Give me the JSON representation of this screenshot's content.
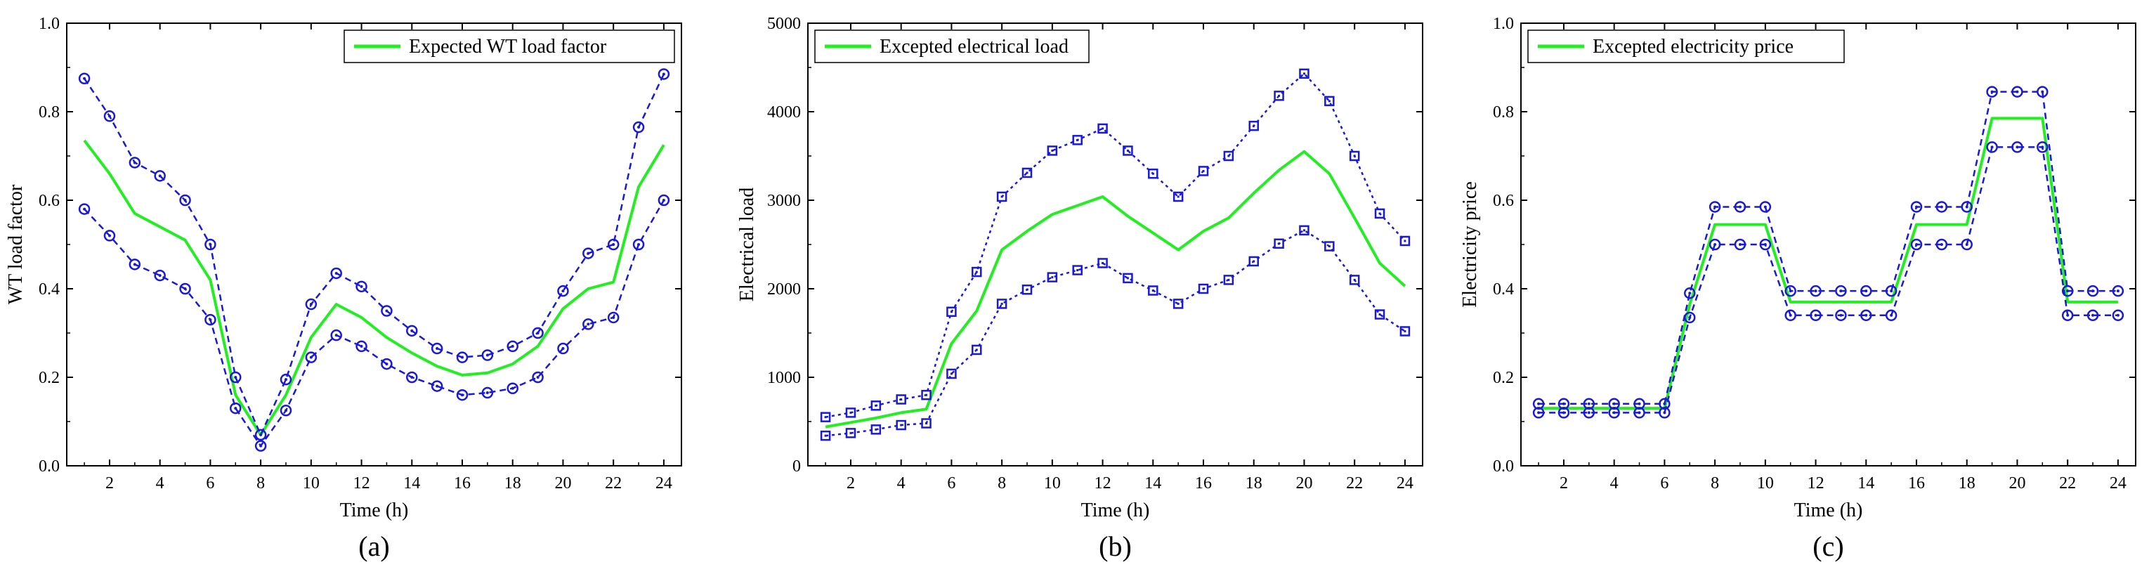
{
  "colors": {
    "expected": "#22ee22",
    "bound": "#1a1ad6",
    "axis": "#000000",
    "background": "#ffffff"
  },
  "chart_data": [
    {
      "type": "line",
      "panel_label": "(a)",
      "xlabel": "Time (h)",
      "ylabel": "WT load factor",
      "xlim": [
        0.3,
        24.7
      ],
      "ylim": [
        0.0,
        1.0
      ],
      "xticks": [
        2,
        4,
        6,
        8,
        10,
        12,
        14,
        16,
        18,
        20,
        22,
        24
      ],
      "yticks": [
        0.0,
        0.2,
        0.4,
        0.6,
        0.8,
        1.0
      ],
      "ytick_labels": [
        "0.0",
        "0.2",
        "0.4",
        "0.6",
        "0.8",
        "1.0"
      ],
      "legend": {
        "label": "Expected WT load factor",
        "position": "top-right"
      },
      "marker": "circle",
      "x": [
        1,
        2,
        3,
        4,
        5,
        6,
        7,
        8,
        9,
        10,
        11,
        12,
        13,
        14,
        15,
        16,
        17,
        18,
        19,
        20,
        21,
        22,
        23,
        24
      ],
      "series": [
        {
          "name": "Expected WT load factor",
          "role": "expected",
          "values": [
            0.735,
            0.66,
            0.57,
            0.54,
            0.51,
            0.42,
            0.16,
            0.07,
            0.16,
            0.29,
            0.365,
            0.335,
            0.29,
            0.255,
            0.225,
            0.205,
            0.21,
            0.23,
            0.27,
            0.355,
            0.4,
            0.415,
            0.63,
            0.725
          ]
        },
        {
          "name": "Upper bound",
          "role": "upper",
          "values": [
            0.875,
            0.79,
            0.685,
            0.655,
            0.6,
            0.5,
            0.2,
            0.07,
            0.195,
            0.365,
            0.435,
            0.405,
            0.35,
            0.305,
            0.265,
            0.245,
            0.25,
            0.27,
            0.3,
            0.395,
            0.48,
            0.5,
            0.765,
            0.885
          ]
        },
        {
          "name": "Lower bound",
          "role": "lower",
          "values": [
            0.58,
            0.52,
            0.455,
            0.43,
            0.4,
            0.33,
            0.13,
            0.045,
            0.125,
            0.245,
            0.295,
            0.27,
            0.23,
            0.2,
            0.18,
            0.16,
            0.165,
            0.175,
            0.2,
            0.265,
            0.32,
            0.335,
            0.5,
            0.6
          ]
        }
      ]
    },
    {
      "type": "line",
      "panel_label": "(b)",
      "xlabel": "Time (h)",
      "ylabel": "Electrical load",
      "xlim": [
        0.3,
        24.7
      ],
      "ylim": [
        0,
        5000
      ],
      "xticks": [
        2,
        4,
        6,
        8,
        10,
        12,
        14,
        16,
        18,
        20,
        22,
        24
      ],
      "yticks": [
        0,
        1000,
        2000,
        3000,
        4000,
        5000
      ],
      "ytick_labels": [
        "0",
        "1000",
        "2000",
        "3000",
        "4000",
        "5000"
      ],
      "legend": {
        "label": "Excepted electrical load",
        "position": "top-left"
      },
      "marker": "square",
      "x": [
        1,
        2,
        3,
        4,
        5,
        6,
        7,
        8,
        9,
        10,
        11,
        12,
        13,
        14,
        15,
        16,
        17,
        18,
        19,
        20,
        21,
        22,
        23,
        24
      ],
      "series": [
        {
          "name": "Excepted electrical load",
          "role": "expected",
          "values": [
            440,
            490,
            540,
            600,
            640,
            1380,
            1750,
            2440,
            2650,
            2840,
            2940,
            3040,
            2820,
            2630,
            2440,
            2650,
            2800,
            3080,
            3340,
            3550,
            3300,
            2800,
            2290,
            2030
          ]
        },
        {
          "name": "Upper bound",
          "role": "upper",
          "values": [
            550,
            600,
            680,
            750,
            800,
            1740,
            2190,
            3040,
            3310,
            3560,
            3680,
            3810,
            3560,
            3300,
            3040,
            3330,
            3500,
            3840,
            4180,
            4430,
            4120,
            3500,
            2850,
            2540
          ]
        },
        {
          "name": "Lower bound",
          "role": "lower",
          "values": [
            340,
            370,
            410,
            460,
            480,
            1040,
            1310,
            1830,
            1990,
            2130,
            2210,
            2290,
            2120,
            1980,
            1830,
            2000,
            2100,
            2310,
            2510,
            2660,
            2480,
            2100,
            1710,
            1520
          ]
        }
      ]
    },
    {
      "type": "line",
      "panel_label": "(c)",
      "xlabel": "Time (h)",
      "ylabel": "Electricity price",
      "xlim": [
        0.3,
        24.7
      ],
      "ylim": [
        0.0,
        1.0
      ],
      "xticks": [
        2,
        4,
        6,
        8,
        10,
        12,
        14,
        16,
        18,
        20,
        22,
        24
      ],
      "yticks": [
        0.0,
        0.2,
        0.4,
        0.6,
        0.8,
        1.0
      ],
      "ytick_labels": [
        "0.0",
        "0.2",
        "0.4",
        "0.6",
        "0.8",
        "1.0"
      ],
      "legend": {
        "label": "Excepted electricity price",
        "position": "top-left"
      },
      "marker": "circle",
      "x": [
        1,
        2,
        3,
        4,
        5,
        6,
        7,
        8,
        9,
        10,
        11,
        12,
        13,
        14,
        15,
        16,
        17,
        18,
        19,
        20,
        21,
        22,
        23,
        24
      ],
      "series": [
        {
          "name": "Excepted electricity price",
          "role": "expected",
          "values": [
            0.13,
            0.13,
            0.13,
            0.13,
            0.13,
            0.13,
            0.365,
            0.545,
            0.545,
            0.545,
            0.37,
            0.37,
            0.37,
            0.37,
            0.37,
            0.545,
            0.545,
            0.545,
            0.785,
            0.785,
            0.785,
            0.37,
            0.37,
            0.37
          ]
        },
        {
          "name": "Upper bound",
          "role": "upper",
          "values": [
            0.14,
            0.14,
            0.14,
            0.14,
            0.14,
            0.14,
            0.39,
            0.585,
            0.585,
            0.585,
            0.395,
            0.395,
            0.395,
            0.395,
            0.395,
            0.585,
            0.585,
            0.585,
            0.845,
            0.845,
            0.845,
            0.395,
            0.395,
            0.395
          ]
        },
        {
          "name": "Lower bound",
          "role": "lower",
          "values": [
            0.12,
            0.12,
            0.12,
            0.12,
            0.12,
            0.12,
            0.335,
            0.5,
            0.5,
            0.5,
            0.34,
            0.34,
            0.34,
            0.34,
            0.34,
            0.5,
            0.5,
            0.5,
            0.72,
            0.72,
            0.72,
            0.34,
            0.34,
            0.34
          ]
        }
      ]
    }
  ]
}
